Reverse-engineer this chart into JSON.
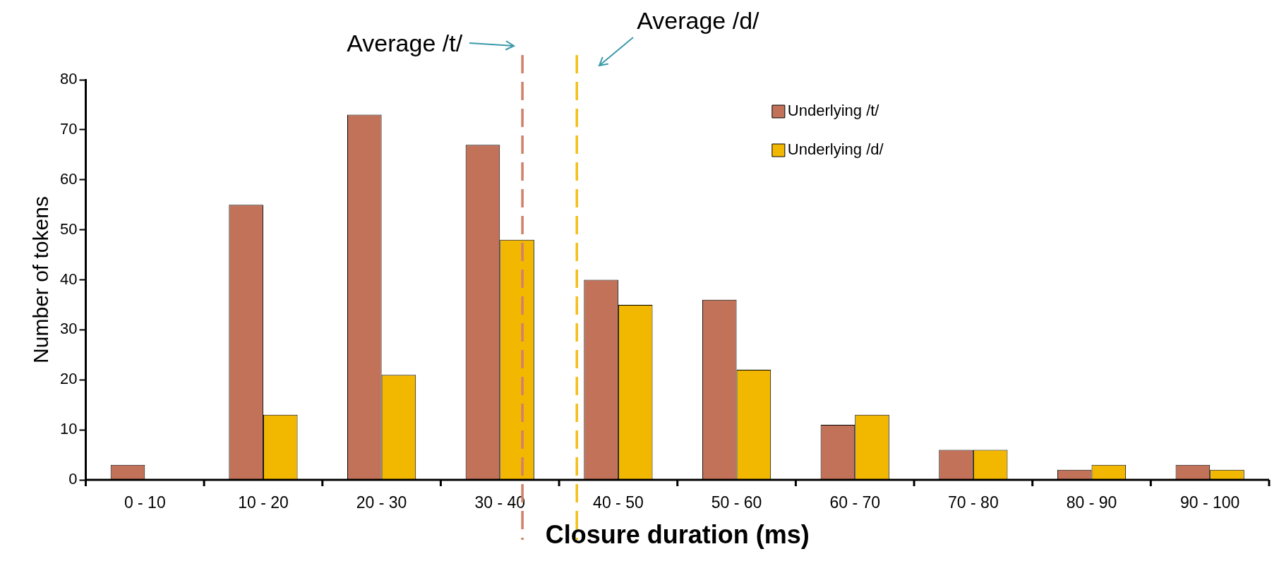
{
  "chart_data": {
    "type": "bar",
    "xlabel": "Closure duration (ms)",
    "ylabel": "Number of tokens",
    "categories": [
      "0 - 10",
      "10 - 20",
      "20 - 30",
      "30 - 40",
      "40 - 50",
      "50 - 60",
      "60 - 70",
      "70 - 80",
      "80 - 90",
      "90 - 100"
    ],
    "series": [
      {
        "name": "Underlying /t/",
        "color": "#c27259",
        "values": [
          3,
          55,
          73,
          67,
          40,
          36,
          11,
          6,
          2,
          3
        ]
      },
      {
        "name": "Underlying /d/",
        "color": "#f2b800",
        "values": [
          0,
          13,
          21,
          48,
          35,
          22,
          13,
          6,
          3,
          2
        ]
      }
    ],
    "ylim": [
      0,
      80
    ],
    "yticks": [
      0,
      10,
      20,
      30,
      40,
      50,
      60,
      70,
      80
    ],
    "ref_lines": [
      {
        "axis": "x",
        "value": "30 - 40",
        "label": "Average /t/",
        "color": "#d0806a",
        "line_style": "dashed"
      },
      {
        "axis": "x",
        "value": "40 - 50",
        "label": "Average /d/",
        "color": "#f5bf1a",
        "line_style": "dashed"
      }
    ],
    "grid": false,
    "legend": "top right"
  }
}
